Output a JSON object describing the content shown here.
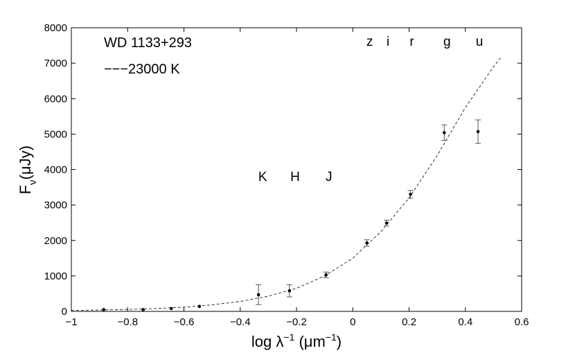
{
  "chart_data": {
    "type": "scatter",
    "title": "",
    "xlabel": "log λ",
    "xlabel_sup": "−1",
    "xlabel_unit_open": " (μm",
    "xlabel_unit_sup": "−1",
    "xlabel_unit_close": ")",
    "ylabel_main": "F",
    "ylabel_sub": "ν",
    "ylabel_rest": "(μJy)",
    "xlim": [
      -1,
      0.6
    ],
    "ylim": [
      0,
      8000
    ],
    "x_ticks": [
      -1,
      -0.8,
      -0.6,
      -0.4,
      -0.2,
      0,
      0.2,
      0.4,
      0.6
    ],
    "x_tick_labels": [
      "−1",
      "−0.8",
      "−0.6",
      "−0.4",
      "−0.2",
      "0",
      "0.2",
      "0.4",
      "0.6"
    ],
    "y_ticks": [
      0,
      1000,
      2000,
      3000,
      4000,
      5000,
      6000,
      7000,
      8000
    ],
    "y_tick_labels": [
      "0",
      "1000",
      "2000",
      "3000",
      "4000",
      "5000",
      "6000",
      "7000",
      "8000"
    ],
    "grid": false,
    "annotations": {
      "object": "WD 1133+293",
      "model": "−−−23000  K"
    },
    "band_labels_optical": [
      "z",
      "i",
      "r",
      "g",
      "u"
    ],
    "band_labels_ir": [
      "K",
      "H",
      "J"
    ],
    "series": [
      {
        "type": "points_with_errors",
        "points": [
          {
            "x": -0.885,
            "y": 50,
            "err": 0
          },
          {
            "x": -0.745,
            "y": 50,
            "err": 0
          },
          {
            "x": -0.645,
            "y": 80,
            "err": 0
          },
          {
            "x": -0.545,
            "y": 140,
            "err": 0
          },
          {
            "x": -0.335,
            "y": 470,
            "err": 280
          },
          {
            "x": -0.225,
            "y": 580,
            "err": 170
          },
          {
            "x": -0.095,
            "y": 1030,
            "err": 80
          },
          {
            "x": 0.05,
            "y": 1930,
            "err": 90
          },
          {
            "x": 0.12,
            "y": 2490,
            "err": 80
          },
          {
            "x": 0.205,
            "y": 3300,
            "err": 110
          },
          {
            "x": 0.325,
            "y": 5040,
            "err": 220
          },
          {
            "x": 0.445,
            "y": 5070,
            "err": 330
          }
        ]
      },
      {
        "type": "dashed_model",
        "x": [
          -1.0,
          -0.9,
          -0.8,
          -0.7,
          -0.6,
          -0.5,
          -0.4,
          -0.3,
          -0.2,
          -0.1,
          0.0,
          0.1,
          0.2,
          0.3,
          0.4,
          0.5,
          0.525
        ],
        "y": [
          25,
          40,
          55,
          80,
          120,
          185,
          280,
          430,
          650,
          1000,
          1500,
          2250,
          3200,
          4400,
          5750,
          6900,
          7150
        ]
      }
    ]
  }
}
